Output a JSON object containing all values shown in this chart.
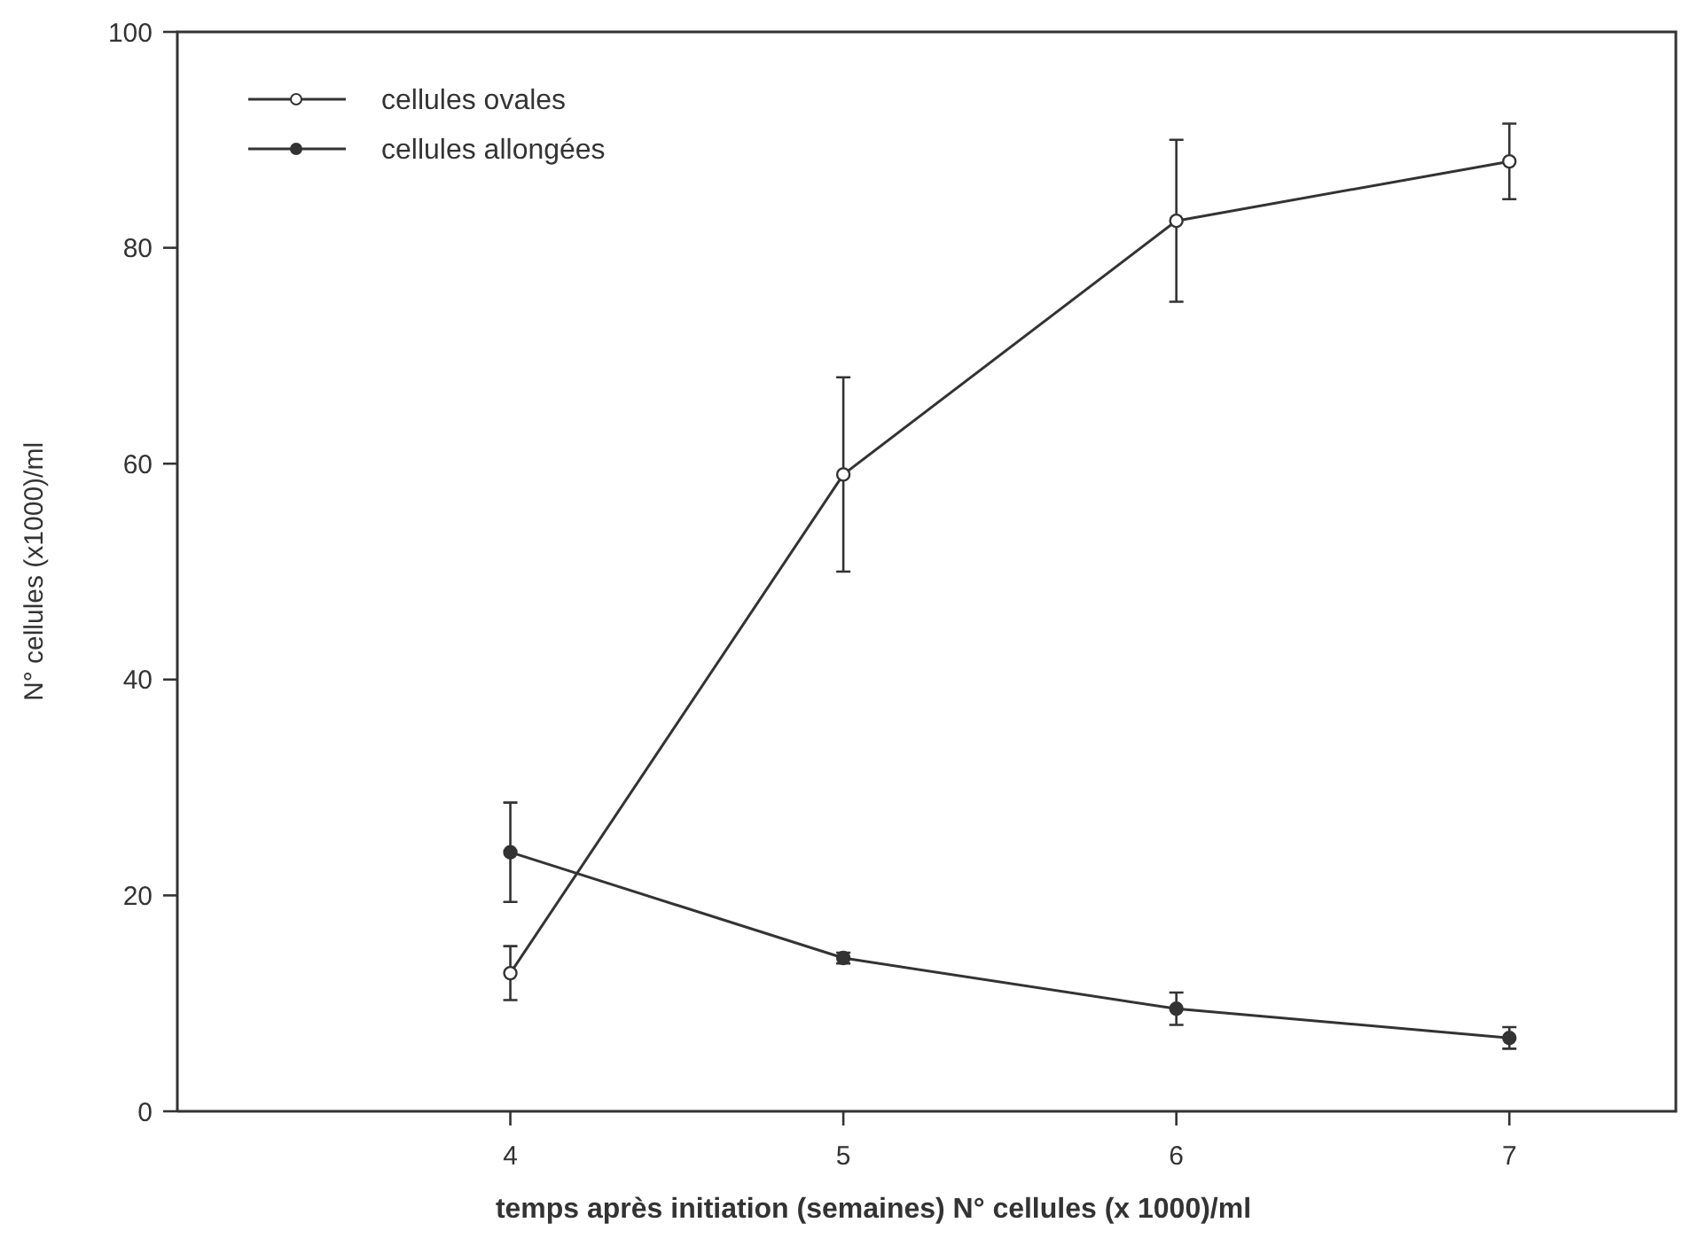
{
  "chart_data": {
    "type": "line",
    "xlabel": "temps après initiation (semaines)  N° cellules (x 1000)/ml",
    "ylabel": "N° cellules (x1000)/ml",
    "x": [
      4,
      5,
      6,
      7
    ],
    "xlim": [
      3,
      7.5
    ],
    "xticks": [
      4,
      5,
      6,
      7
    ],
    "ylim": [
      0,
      100
    ],
    "yticks": [
      0,
      20,
      40,
      60,
      80,
      100
    ],
    "grid": false,
    "legend": "top left",
    "marker": "circle",
    "line_style": "solid",
    "series": [
      {
        "name": "cellules ovales",
        "color": "#333333",
        "values": [
          12.8,
          59,
          82.5,
          88
        ],
        "errors": [
          2.5,
          9,
          7.5,
          3.5
        ]
      },
      {
        "name": "cellules allongées",
        "color": "#333333",
        "values": [
          24,
          14.2,
          9.5,
          6.8
        ],
        "errors": [
          4.6,
          0.5,
          1.5,
          1
        ]
      }
    ]
  }
}
